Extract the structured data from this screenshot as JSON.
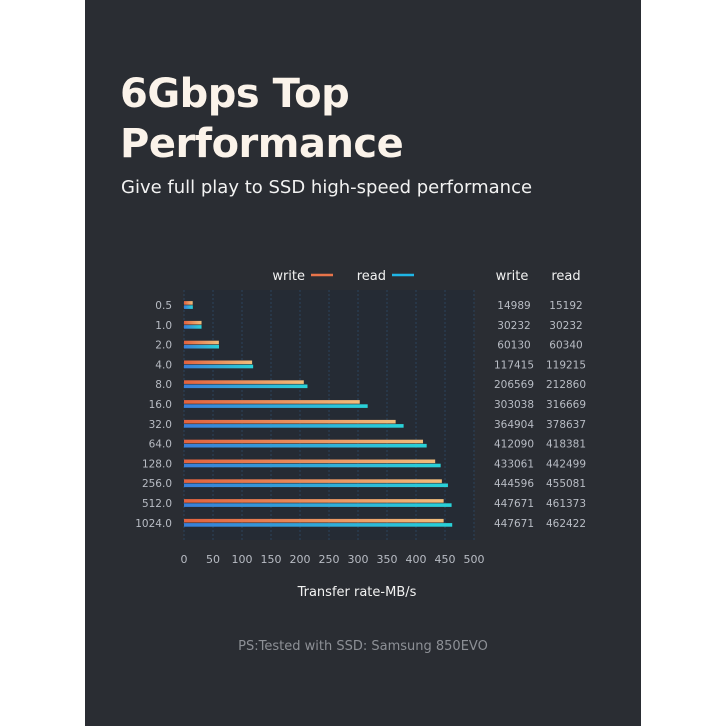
{
  "header": {
    "title_line1": "6Gbps Top",
    "title_line2": "Performance",
    "subtitle": "Give full play to SSD high-speed performance"
  },
  "footnote": "PS:Tested with SSD: Samsung 850EVO",
  "colors": {
    "background": "#2a2d33",
    "plot_area": "#252b34",
    "write": "#e8744a",
    "read": "#1fb6e6"
  },
  "table": {
    "headers": [
      "write",
      "read"
    ],
    "rows": [
      [
        "14989",
        "15192"
      ],
      [
        "30232",
        "30232"
      ],
      [
        "60130",
        "60340"
      ],
      [
        "117415",
        "119215"
      ],
      [
        "206569",
        "212860"
      ],
      [
        "303038",
        "316669"
      ],
      [
        "364904",
        "378637"
      ],
      [
        "412090",
        "418381"
      ],
      [
        "433061",
        "442499"
      ],
      [
        "444596",
        "455081"
      ],
      [
        "447671",
        "461373"
      ],
      [
        "447671",
        "462422"
      ]
    ]
  },
  "chart_data": {
    "type": "bar",
    "orientation": "horizontal",
    "categories": [
      "0.5",
      "1.0",
      "2.0",
      "4.0",
      "8.0",
      "16.0",
      "32.0",
      "64.0",
      "128.0",
      "256.0",
      "512.0",
      "1024.0"
    ],
    "series": [
      {
        "name": "write",
        "values": [
          14.989,
          30.232,
          60.13,
          117.415,
          206.569,
          303.038,
          364.904,
          412.09,
          433.061,
          444.596,
          447.671,
          447.671
        ]
      },
      {
        "name": "read",
        "values": [
          15.192,
          30.232,
          60.34,
          119.215,
          212.86,
          316.669,
          378.637,
          418.381,
          442.499,
          455.081,
          461.373,
          462.422
        ]
      }
    ],
    "xlabel": "Transfer rate-MB/s",
    "xlim": [
      0,
      500
    ],
    "xticks": [
      "0",
      "50",
      "100",
      "150",
      "200",
      "250",
      "300",
      "350",
      "400",
      "450",
      "500"
    ],
    "grid": true,
    "legend": "top"
  }
}
